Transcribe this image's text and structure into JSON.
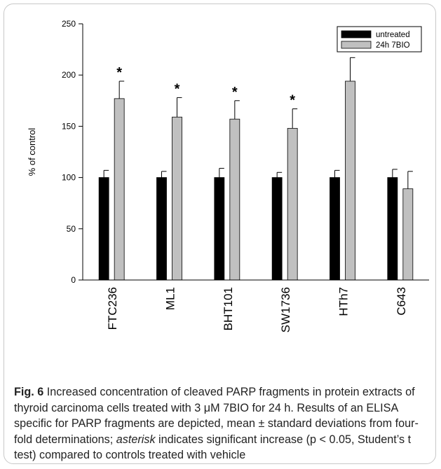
{
  "chart_data": {
    "type": "bar",
    "categories": [
      "FTC236",
      "ML1",
      "BHT101",
      "SW1736",
      "HTh7",
      "C643"
    ],
    "series": [
      {
        "name": "untreated",
        "values": [
          100,
          100,
          100,
          100,
          100,
          100
        ],
        "errors": [
          7,
          6,
          9,
          5,
          7,
          8
        ],
        "color": "#000000"
      },
      {
        "name": "24h 7BIO",
        "values": [
          177,
          159,
          157,
          148,
          194,
          89
        ],
        "errors": [
          17,
          19,
          18,
          19,
          23,
          17
        ],
        "color": "#c0c0c0"
      }
    ],
    "significance_marks": [
      "*",
      "*",
      "*",
      "*",
      "*",
      ""
    ],
    "ylabel": "% of control",
    "xlabel": "",
    "title": "",
    "ylim": [
      0,
      250
    ],
    "yticks": [
      0,
      50,
      100,
      150,
      200,
      250
    ],
    "legend": "top-right",
    "grid": false
  },
  "caption": {
    "label": "Fig. 6",
    "text_1": "  Increased concentration of cleaved PARP fragments in protein extracts of thyroid carcinoma cells treated with 3 μM 7BIO for 24 h. Results of an ELISA specific for PARP fragments are depicted, mean ± standard deviations from four-fold determinations; ",
    "emphasis": "asterisk",
    "text_2": " indicates significant increase (p < 0.05, Student’s t test) compared to controls treated with vehicle"
  }
}
